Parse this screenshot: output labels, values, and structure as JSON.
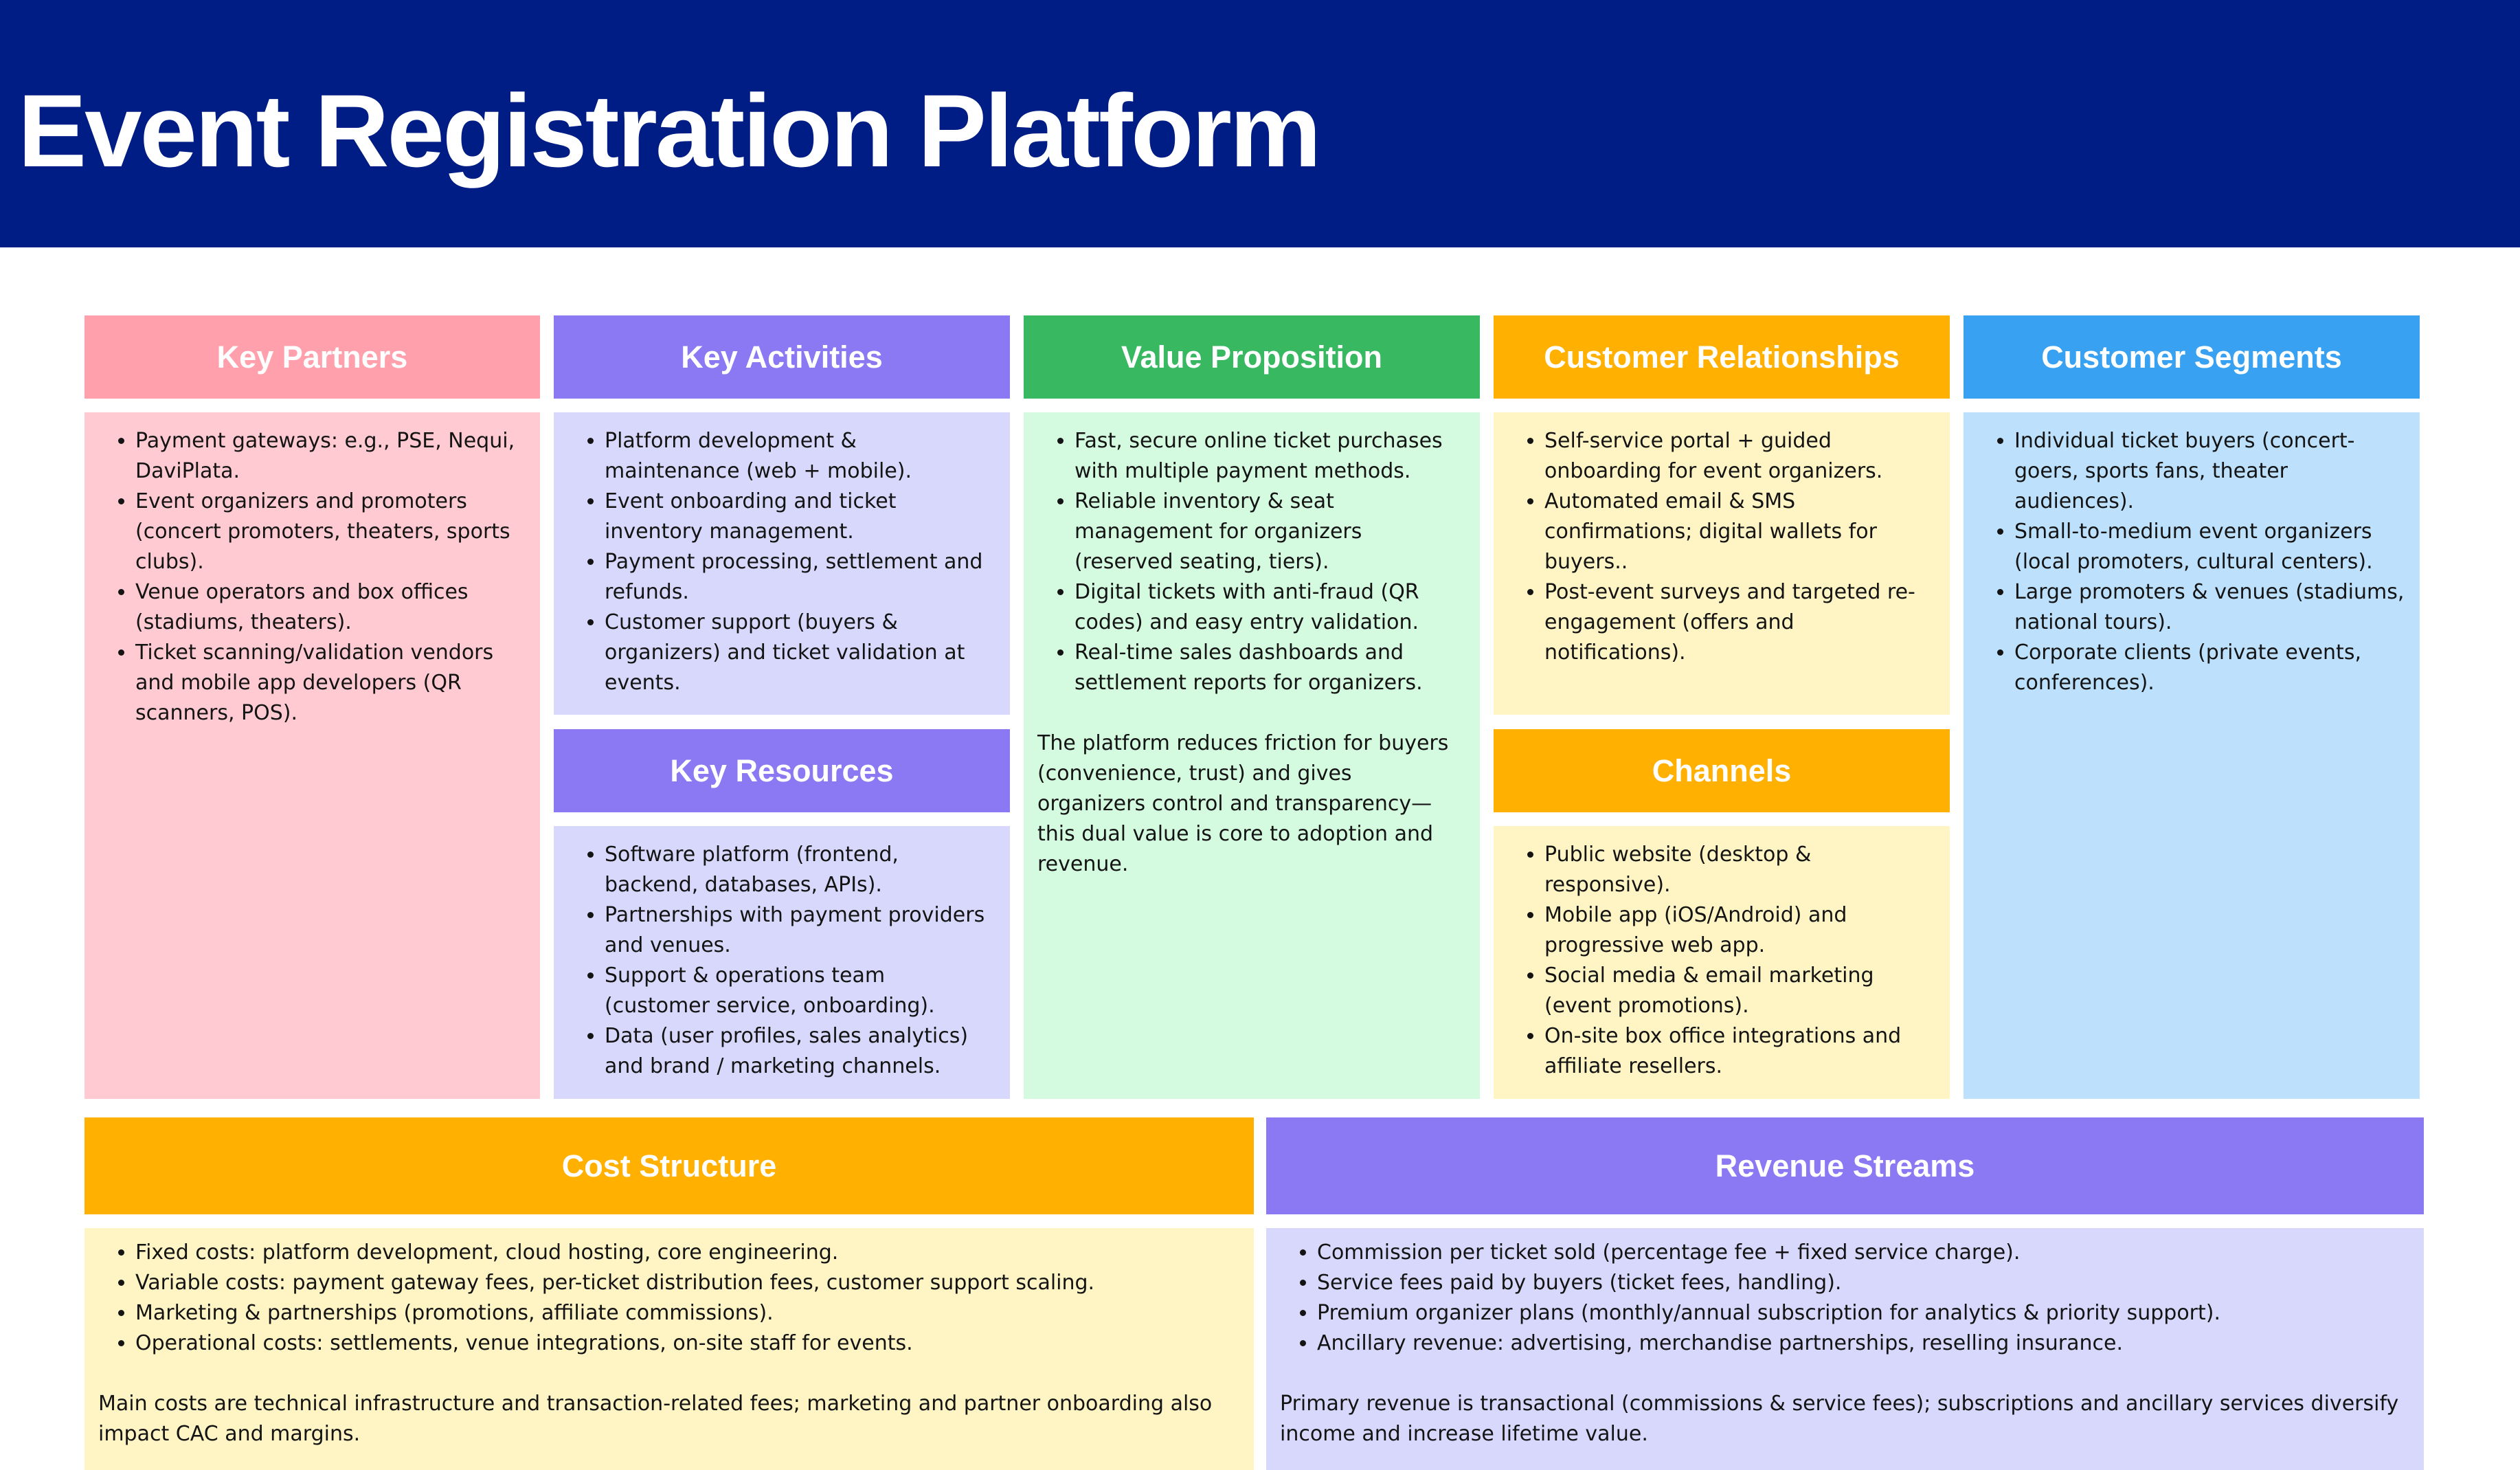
{
  "title": "Event Registration Platform",
  "colors": {
    "banner": "#001c85",
    "partners_header": "#ffa0ac",
    "partners_body": "#ffcad1",
    "purple_header": "#8b78f3",
    "purple_body": "#d8d8fd",
    "green_header": "#37b861",
    "green_body": "#d4fadf",
    "orange_header": "#ffb000",
    "yellow_body": "#fef4c4",
    "blue_header": "#38a1f2",
    "blue_body": "#bde1fc"
  },
  "blocks": {
    "key_partners": {
      "title": "Key Partners",
      "items": [
        "Payment gateways: e.g., PSE, Nequi, DaviPlata.",
        "Event organizers and promoters (concert promoters, theaters, sports clubs).",
        "Venue operators and box offices (stadiums, theaters).",
        "Ticket scanning/validation vendors and mobile app developers (QR scanners, POS)."
      ]
    },
    "key_activities": {
      "title": "Key Activities",
      "items": [
        "Platform development & maintenance (web + mobile).",
        "Event onboarding and ticket inventory management.",
        "Payment processing, settlement and refunds.",
        "Customer support (buyers & organizers) and ticket validation at events."
      ]
    },
    "key_resources": {
      "title": "Key Resources",
      "items": [
        "Software platform (frontend, backend, databases, APIs).",
        "Partnerships with payment providers and venues.",
        "Support & operations team (customer service, onboarding).",
        "Data (user profiles, sales analytics) and brand / marketing channels."
      ]
    },
    "value_proposition": {
      "title": "Value Proposition",
      "items": [
        "Fast, secure online ticket purchases with multiple payment methods.",
        "Reliable inventory & seat management for organizers (reserved seating, tiers).",
        "Digital tickets with anti-fraud (QR codes) and easy entry validation.",
        "Real-time sales dashboards and settlement reports for organizers."
      ],
      "note": "The platform reduces friction for buyers (convenience, trust) and gives organizers control and transparency—this dual value is core to adoption and revenue."
    },
    "customer_relationships": {
      "title": "Customer Relationships",
      "items": [
        "Self-service portal + guided onboarding for event organizers.",
        "Automated email & SMS confirmations; digital wallets for buyers..",
        "Post-event surveys and targeted re-engagement (offers and notifications)."
      ]
    },
    "channels": {
      "title": "Channels",
      "items": [
        "Public website (desktop & responsive).",
        "Mobile app (iOS/Android) and progressive web app.",
        "Social media & email marketing (event promotions).",
        "On-site box office integrations and affiliate resellers."
      ]
    },
    "customer_segments": {
      "title": "Customer Segments",
      "items": [
        "Individual ticket buyers (concert-goers, sports fans, theater audiences).",
        "Small-to-medium event organizers (local promoters, cultural centers).",
        "Large promoters & venues (stadiums, national tours).",
        "Corporate clients (private events, conferences)."
      ]
    },
    "cost_structure": {
      "title": "Cost Structure",
      "items": [
        "Fixed costs: platform development, cloud hosting, core engineering.",
        "Variable costs: payment gateway fees, per-ticket distribution fees, customer support scaling.",
        "Marketing & partnerships (promotions, affiliate commissions).",
        "Operational costs: settlements, venue integrations, on-site staff for events."
      ],
      "note": "Main costs are technical infrastructure and transaction-related fees; marketing and partner onboarding also impact CAC and margins."
    },
    "revenue_streams": {
      "title": "Revenue Streams",
      "items": [
        "Commission per ticket sold (percentage fee + fixed service charge).",
        "Service fees paid by buyers (ticket fees, handling).",
        "Premium organizer plans (monthly/annual subscription for analytics & priority support).",
        "Ancillary revenue: advertising, merchandise partnerships, reselling insurance."
      ],
      "note": "Primary revenue is transactional (commissions & service fees); subscriptions and ancillary services diversify income and increase lifetime value."
    }
  }
}
